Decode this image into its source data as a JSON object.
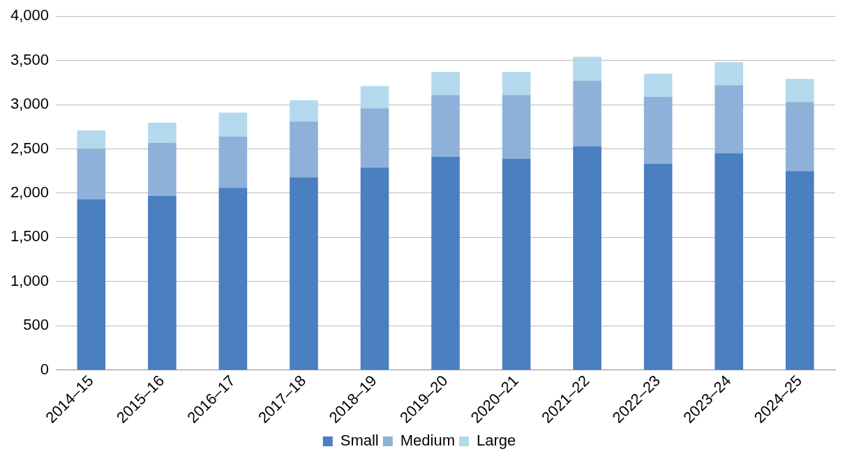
{
  "chart_data": {
    "type": "bar",
    "stacked": true,
    "categories": [
      "2014–15",
      "2015–16",
      "2016–17",
      "2017–18",
      "2018–19",
      "2019–20",
      "2020–21",
      "2021–22",
      "2022–23",
      "2023–24",
      "2024–25"
    ],
    "series": [
      {
        "name": "Small",
        "color": "#4a7fc0",
        "values": [
          1930,
          1970,
          2060,
          2180,
          2290,
          2410,
          2390,
          2530,
          2330,
          2450,
          2250
        ]
      },
      {
        "name": "Medium",
        "color": "#8eb1da",
        "values": [
          570,
          600,
          580,
          630,
          670,
          700,
          720,
          740,
          760,
          770,
          780
        ]
      },
      {
        "name": "Large",
        "color": "#b4d9ec",
        "values": [
          210,
          225,
          270,
          240,
          250,
          260,
          260,
          270,
          260,
          260,
          260
        ]
      }
    ],
    "ylim": [
      0,
      4000
    ],
    "yticks": [
      {
        "value": 0,
        "label": "0"
      },
      {
        "value": 500,
        "label": "500"
      },
      {
        "value": 1000,
        "label": "1,000"
      },
      {
        "value": 1500,
        "label": "1,500"
      },
      {
        "value": 2000,
        "label": "2,000"
      },
      {
        "value": 2500,
        "label": "2,500"
      },
      {
        "value": 3000,
        "label": "3,000"
      },
      {
        "value": 3500,
        "label": "3,500"
      },
      {
        "value": 4000,
        "label": "4,000"
      }
    ],
    "grid": "y",
    "legend": "bottom"
  }
}
